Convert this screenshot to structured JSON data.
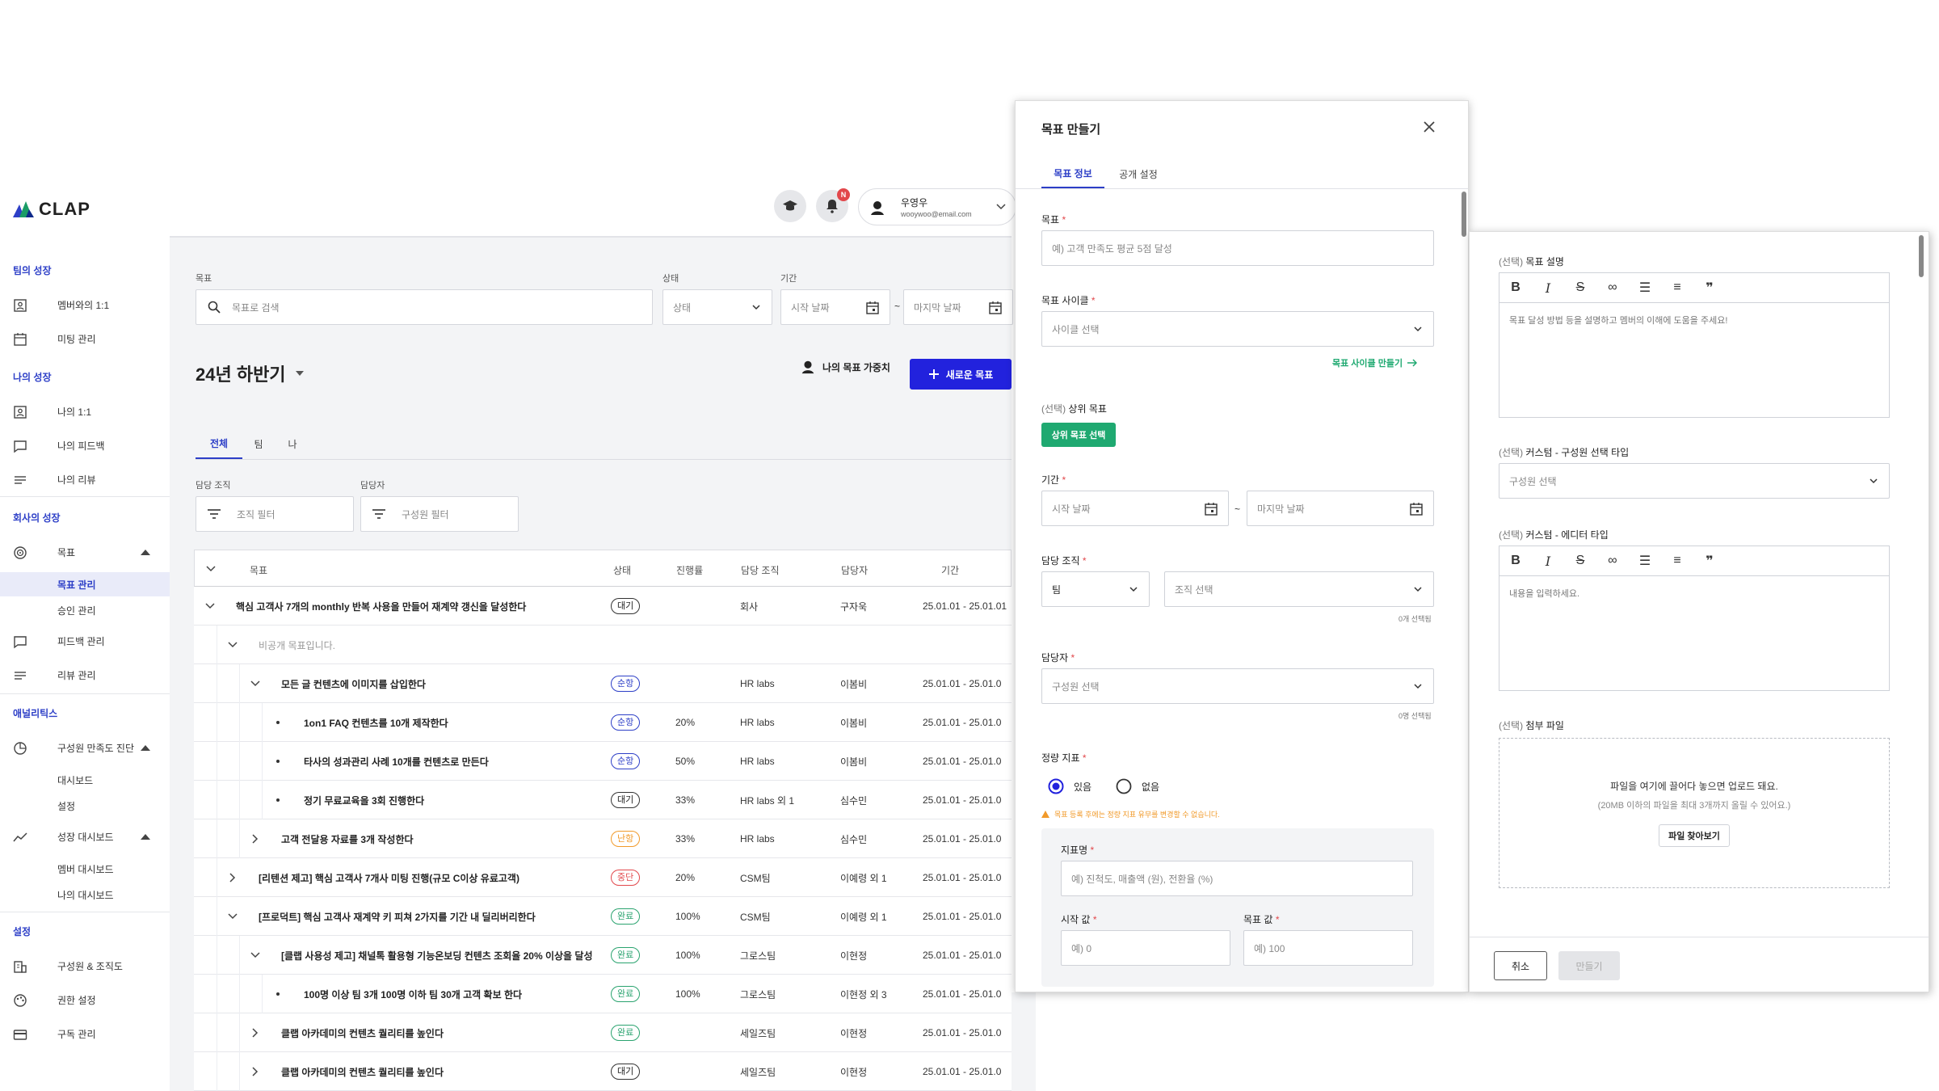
{
  "brand": {
    "name": "CLAP"
  },
  "header": {
    "user_name": "우영우",
    "user_email": "wooywoo@email.com",
    "notif_badge": "N"
  },
  "sidebar": {
    "sections": [
      {
        "title": "팀의 성장",
        "items": [
          "멤버와의 1:1",
          "미팅 관리"
        ]
      },
      {
        "title": "나의 성장",
        "items": [
          "나의 1:1",
          "나의 피드백",
          "나의 리뷰"
        ]
      },
      {
        "title": "회사의 성장",
        "items": [
          "목표",
          "피드백 관리",
          "리뷰 관리"
        ],
        "goal_subs": [
          "목표 관리",
          "승인 관리"
        ]
      },
      {
        "title": "애널리틱스",
        "items": [
          "구성원 만족도 진단",
          "성장 대시보드"
        ],
        "survey_subs": [
          "대시보드",
          "설정"
        ],
        "growth_subs": [
          "멤버 대시보드",
          "나의 대시보드"
        ]
      },
      {
        "title": "설정",
        "items": [
          "구성원 & 조직도",
          "권한 설정",
          "구독 관리"
        ]
      }
    ]
  },
  "filters": {
    "goal_label": "목표",
    "goal_placeholder": "목표로 검색",
    "status_label": "상태",
    "status_value": "상태",
    "period_label": "기간",
    "start_placeholder": "시작 날짜",
    "end_placeholder": "마지막 날짜",
    "tilde": "~",
    "org_label": "담당 조직",
    "org_value": "조직 필터",
    "owner_label": "담당자",
    "owner_value": "구성원 필터"
  },
  "cycle": {
    "title": "24년 하반기",
    "weight_label": "나의 목표 가중치",
    "new_button": "새로운 목표"
  },
  "tabs": [
    "전체",
    "팀",
    "나"
  ],
  "table": {
    "headers": [
      "목표",
      "상태",
      "진행률",
      "담당 조직",
      "담당자",
      "기간"
    ],
    "rows": [
      {
        "title": "핵심 고객사 7개의 monthly 반복 사용을 만들어 재계약 갱신을 달성한다",
        "status": "대기",
        "progress": "",
        "org": "회사",
        "owner": "구자욱",
        "period": "25.01.01 - 25.01.01",
        "indent": 0,
        "toggle": "down",
        "badge": "dark"
      },
      {
        "title": "비공개 목표입니다.",
        "status": "",
        "progress": "",
        "org": "",
        "owner": "",
        "period": "",
        "indent": 1,
        "toggle": "down",
        "badge": "",
        "muted": true
      },
      {
        "title": "모든 글 컨텐츠에 이미지를 삽입한다",
        "status": "순항",
        "progress": "",
        "org": "HR labs",
        "owner": "이봄비",
        "period": "25.01.01 - 25.01.0",
        "indent": 2,
        "toggle": "down",
        "badge": "blue"
      },
      {
        "title": "1on1 FAQ 컨텐츠를 10개 제작한다",
        "status": "순항",
        "progress": "20%",
        "org": "HR labs",
        "owner": "이봄비",
        "period": "25.01.01 - 25.01.0",
        "indent": 3,
        "toggle": "dot",
        "badge": "blue"
      },
      {
        "title": "타사의 성과관리 사례 10개를 컨텐츠로 만든다",
        "status": "순항",
        "progress": "50%",
        "org": "HR labs",
        "owner": "이봄비",
        "period": "25.01.01 - 25.01.0",
        "indent": 3,
        "toggle": "dot",
        "badge": "blue"
      },
      {
        "title": "정기 무료교육을 3회 진행한다",
        "status": "대기",
        "progress": "33%",
        "org": "HR labs 외 1",
        "owner": "심수민",
        "period": "25.01.01 - 25.01.0",
        "indent": 3,
        "toggle": "dot",
        "badge": "dark"
      },
      {
        "title": "고객 전달용 자료를 3개 작성한다",
        "status": "난항",
        "progress": "33%",
        "org": "HR labs",
        "owner": "심수민",
        "period": "25.01.01 - 25.01.0",
        "indent": 2,
        "toggle": "right",
        "badge": "orange"
      },
      {
        "title": "[리텐션 제고] 핵심 고객사 7개사 미팅 진행(규모 C이상 유료고객)",
        "status": "중단",
        "progress": "20%",
        "org": "CSM팀",
        "owner": "이예령 외 1",
        "period": "25.01.01 - 25.01.0",
        "indent": 1,
        "toggle": "right",
        "badge": "red"
      },
      {
        "title": "[프로덕트] 핵심 고객사 재계약 키 피쳐 2가지를 기간 내 딜리버리한다",
        "status": "완료",
        "progress": "100%",
        "org": "CSM팀",
        "owner": "이예령 외 1",
        "period": "25.01.01 - 25.01.0",
        "indent": 1,
        "toggle": "down",
        "badge": "green"
      },
      {
        "title": "[클랩 사용성 제고] 채널톡 활용형 기능온보딩 컨텐츠 조회율 20% 이상을 달성",
        "status": "완료",
        "progress": "100%",
        "org": "그로스팀",
        "owner": "이현정",
        "period": "25.01.01 - 25.01.0",
        "indent": 2,
        "toggle": "down",
        "badge": "green"
      },
      {
        "title": "100명 이상 팀 3개 100명 이하 팀 30개 고객 확보 한다",
        "status": "완료",
        "progress": "100%",
        "org": "그로스팀",
        "owner": "이현정 외 3",
        "period": "25.01.01 - 25.01.0",
        "indent": 3,
        "toggle": "dot",
        "badge": "green"
      },
      {
        "title": "클랩 아카데미의 컨텐츠 퀄리티를 높인다",
        "status": "완료",
        "progress": "",
        "org": "세일즈팀",
        "owner": "이현정",
        "period": "25.01.01 - 25.01.0",
        "indent": 2,
        "toggle": "right",
        "badge": "green"
      },
      {
        "title": "클랩 아카데미의 컨텐츠 퀄리티를 높인다",
        "status": "대기",
        "progress": "",
        "org": "세일즈팀",
        "owner": "이현정",
        "period": "25.01.01 - 25.01.0",
        "indent": 2,
        "toggle": "right",
        "badge": "dark"
      }
    ]
  },
  "modal": {
    "title": "목표 만들기",
    "tabs": [
      "목표 정보",
      "공개 설정"
    ],
    "goal_label": "목표",
    "goal_placeholder": "예) 고객 만족도 평균 5점 달성",
    "cycle_label": "목표 사이클",
    "cycle_placeholder": "사이클 선택",
    "make_cycle": "목표 사이클 만들기",
    "optional": "(선택)",
    "parent_label": "상위 목표",
    "parent_button": "상위 목표 선택",
    "period_label": "기간",
    "start_placeholder": "시작 날짜",
    "end_placeholder": "마지막 날짜",
    "org_label": "담당 조직",
    "org_type": "팀",
    "org_placeholder": "조직 선택",
    "org_count": "0개 선택됨",
    "owner_label": "담당자",
    "owner_placeholder": "구성원 선택",
    "owner_count": "0명 선택됨",
    "metric_label": "정량 지표",
    "radio_yes": "있음",
    "radio_no": "없음",
    "warning": "목표 등록 후에는 정량 지표 유무를 변경할 수 없습니다.",
    "kpi_name_label": "지표명",
    "kpi_name_placeholder": "예) 진척도, 매출액 (원), 전환율 (%)",
    "start_value_label": "시작 값",
    "start_value_placeholder": "예) 0",
    "target_value_label": "목표 값",
    "target_value_placeholder": "예) 100"
  },
  "modal2": {
    "desc_label": "목표 설명",
    "desc_placeholder": "목표 달성 방법 등을 설명하고 멤버의 이해에 도움을 주세요!",
    "custom_select_label": "커스텀 - 구성원 선택 타입",
    "custom_select_placeholder": "구성원 선택",
    "custom_editor_label": "커스텀 - 에디터 타입",
    "custom_editor_placeholder": "내용을 입력하세요.",
    "file_label": "첨부 파일",
    "file_drop": "파일을 여기에 끌어다 놓으면 업로드 돼요.",
    "file_limit": "(20MB 이하의 파일을 최대 3개까지 올릴 수 있어요.)",
    "file_button": "파일 찾아보기",
    "cancel": "취소",
    "create": "만들기"
  },
  "colors": {
    "primary": "#2222dd",
    "green": "#1fa971",
    "orange": "#f19a2a",
    "red": "#e2474b",
    "brand_blue": "#2d3fc7"
  }
}
